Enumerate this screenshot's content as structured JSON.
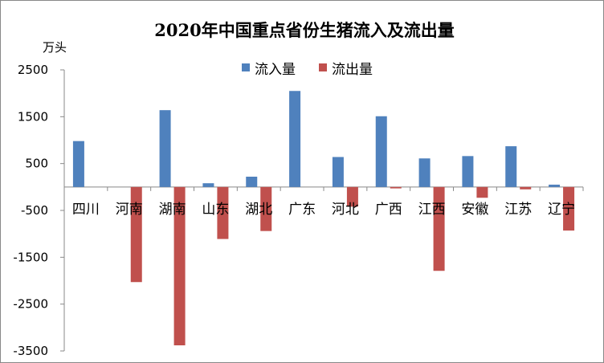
{
  "chart_data": {
    "type": "bar",
    "title": "2020年中国重点省份生猪流入及流出量",
    "ylabel": "万头",
    "xlabel": "",
    "ylim": [
      -3500,
      2500
    ],
    "yticks": [
      2500,
      1500,
      500,
      -500,
      -1500,
      -2500,
      -3500
    ],
    "grid": false,
    "legend_position": "top-center",
    "categories": [
      "四川",
      "河南",
      "湖南",
      "山东",
      "湖北",
      "广东",
      "河北",
      "广西",
      "江西",
      "安徽",
      "江苏",
      "辽宁"
    ],
    "series": [
      {
        "name": "流入量",
        "color": "#4f81bd",
        "values": [
          980,
          0,
          1640,
          80,
          220,
          2050,
          640,
          1510,
          610,
          660,
          870,
          50
        ]
      },
      {
        "name": "流出量",
        "color": "#c0504d",
        "values": [
          0,
          -2030,
          -3380,
          -1110,
          -940,
          0,
          -420,
          -30,
          -1790,
          -230,
          -50,
          -930
        ]
      }
    ]
  }
}
